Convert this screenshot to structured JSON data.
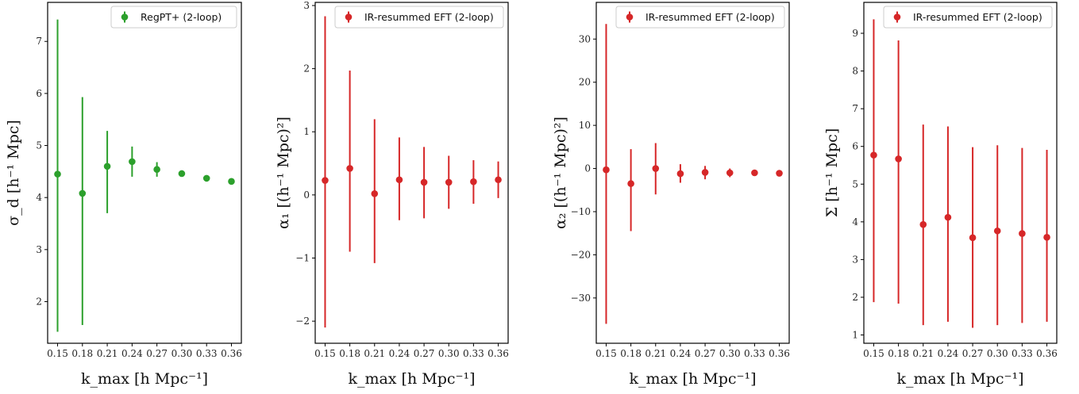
{
  "chart_data": [
    {
      "type": "scatter",
      "series": [
        {
          "name": "RegPT+ (2-loop)",
          "color": "#2ca02c",
          "x": [
            0.15,
            0.18,
            0.21,
            0.24,
            0.27,
            0.3,
            0.33,
            0.36
          ],
          "y": [
            4.45,
            4.08,
            4.6,
            4.69,
            4.54,
            4.46,
            4.37,
            4.31
          ],
          "yerr_low": [
            1.42,
            1.55,
            3.7,
            4.4,
            4.4,
            4.4,
            4.37,
            4.31
          ],
          "yerr_high": [
            7.42,
            5.93,
            5.28,
            4.98,
            4.68,
            4.52,
            4.37,
            4.31
          ]
        }
      ],
      "xticks": [
        "0.15",
        "0.18",
        "0.21",
        "0.24",
        "0.27",
        "0.30",
        "0.33",
        "0.36"
      ],
      "yticks": [
        2,
        3,
        4,
        5,
        6,
        7
      ],
      "xlim": [
        0.138,
        0.372
      ],
      "ylim": [
        1.2,
        7.75
      ],
      "xlabel": "k_max [h Mpc⁻¹]",
      "ylabel": "σ_d [h⁻¹ Mpc]",
      "legend": "top-right"
    },
    {
      "type": "scatter",
      "series": [
        {
          "name": "IR-resummed EFT (2-loop)",
          "color": "#d62728",
          "x": [
            0.15,
            0.18,
            0.21,
            0.24,
            0.27,
            0.3,
            0.33,
            0.36
          ],
          "y": [
            0.23,
            0.42,
            0.02,
            0.24,
            0.2,
            0.2,
            0.21,
            0.24
          ],
          "yerr_low": [
            -2.1,
            -0.9,
            -1.08,
            -0.4,
            -0.37,
            -0.22,
            -0.14,
            -0.05
          ],
          "yerr_high": [
            2.83,
            1.97,
            1.2,
            0.91,
            0.76,
            0.62,
            0.55,
            0.53
          ]
        }
      ],
      "xticks": [
        "0.15",
        "0.18",
        "0.21",
        "0.24",
        "0.27",
        "0.30",
        "0.33",
        "0.36"
      ],
      "yticks": [
        -2,
        -1,
        0,
        1,
        2,
        3
      ],
      "xlim": [
        0.138,
        0.372
      ],
      "ylim": [
        -2.35,
        3.05
      ],
      "xlabel": "k_max [h Mpc⁻¹]",
      "ylabel": "α₁ [(h⁻¹ Mpc)²]",
      "legend": "top-right"
    },
    {
      "type": "scatter",
      "series": [
        {
          "name": "IR-resummed EFT (2-loop)",
          "color": "#d62728",
          "x": [
            0.15,
            0.18,
            0.21,
            0.24,
            0.27,
            0.3,
            0.33,
            0.36
          ],
          "y": [
            -0.3,
            -3.5,
            0.0,
            -1.2,
            -0.9,
            -1.0,
            -1.0,
            -1.1
          ],
          "yerr_low": [
            -36.0,
            -14.5,
            -6.0,
            -3.3,
            -2.5,
            -2.0,
            -1.0,
            -1.1
          ],
          "yerr_high": [
            33.5,
            4.5,
            5.9,
            1.0,
            0.6,
            0.0,
            -1.0,
            -1.1
          ]
        }
      ],
      "xticks": [
        "0.15",
        "0.18",
        "0.21",
        "0.24",
        "0.27",
        "0.30",
        "0.33",
        "0.36"
      ],
      "yticks": [
        -30,
        -20,
        -10,
        0,
        10,
        20,
        30
      ],
      "xlim": [
        0.138,
        0.372
      ],
      "ylim": [
        -40.5,
        38.5
      ],
      "xlabel": "k_max [h Mpc⁻¹]",
      "ylabel": "α₂ [(h⁻¹ Mpc)²]",
      "legend": "top-right"
    },
    {
      "type": "scatter",
      "series": [
        {
          "name": "IR-resummed EFT (2-loop)",
          "color": "#d62728",
          "x": [
            0.15,
            0.18,
            0.21,
            0.24,
            0.27,
            0.3,
            0.33,
            0.36
          ],
          "y": [
            5.77,
            5.67,
            3.93,
            4.12,
            3.58,
            3.76,
            3.69,
            3.59
          ],
          "yerr_low": [
            1.87,
            1.83,
            1.26,
            1.35,
            1.19,
            1.26,
            1.32,
            1.35
          ],
          "yerr_high": [
            9.37,
            8.81,
            6.58,
            6.53,
            5.98,
            6.03,
            5.96,
            5.91
          ]
        }
      ],
      "xticks": [
        "0.15",
        "0.18",
        "0.21",
        "0.24",
        "0.27",
        "0.30",
        "0.33",
        "0.36"
      ],
      "yticks": [
        1,
        2,
        3,
        4,
        5,
        6,
        7,
        8,
        9
      ],
      "xlim": [
        0.138,
        0.372
      ],
      "ylim": [
        0.78,
        9.82
      ],
      "xlabel": "k_max [h Mpc⁻¹]",
      "ylabel": "Σ [h⁻¹ Mpc]",
      "legend": "top-right"
    }
  ]
}
